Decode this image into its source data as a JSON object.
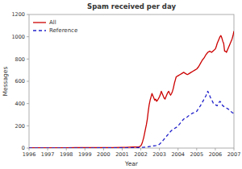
{
  "chart_data": {
    "type": "line",
    "title": "Spam received per day",
    "xlabel": "Year",
    "ylabel": "Messages",
    "xlim": [
      1996,
      2007
    ],
    "ylim": [
      0,
      1200
    ],
    "xticks": [
      1996,
      1997,
      1998,
      1999,
      2000,
      2001,
      2002,
      2003,
      2004,
      2005,
      2006,
      2007
    ],
    "yticks": [
      0,
      200,
      400,
      600,
      800,
      1000,
      1200
    ],
    "grid": false,
    "legend": "upper left",
    "series": [
      {
        "name": "All",
        "color": "#cc0000",
        "line_style": "solid",
        "x": [
          1996.0,
          1996.2,
          1996.5,
          1997.0,
          1997.5,
          1998.0,
          1998.5,
          1999.0,
          1999.5,
          2000.0,
          2000.5,
          2001.0,
          2001.2,
          2001.4,
          2001.6,
          2001.8,
          2001.9,
          2001.95,
          2002.0,
          2002.05,
          2002.1,
          2002.15,
          2002.2,
          2002.25,
          2002.3,
          2002.35,
          2002.4,
          2002.45,
          2002.5,
          2002.55,
          2002.6,
          2002.65,
          2002.7,
          2002.75,
          2002.8,
          2002.85,
          2002.9,
          2002.95,
          2003.0,
          2003.05,
          2003.1,
          2003.15,
          2003.2,
          2003.25,
          2003.3,
          2003.35,
          2003.4,
          2003.45,
          2003.5,
          2003.55,
          2003.6,
          2003.65,
          2003.7,
          2003.75,
          2003.8,
          2003.85,
          2003.9,
          2004.0,
          2004.1,
          2004.2,
          2004.3,
          2004.4,
          2004.5,
          2004.6,
          2004.7,
          2004.8,
          2004.9,
          2005.0,
          2005.1,
          2005.2,
          2005.3,
          2005.4,
          2005.5,
          2005.6,
          2005.7,
          2005.8,
          2005.9,
          2006.0,
          2006.05,
          2006.1,
          2006.15,
          2006.2,
          2006.25,
          2006.3,
          2006.35,
          2006.4,
          2006.45,
          2006.5,
          2006.55,
          2006.6,
          2006.65,
          2006.7,
          2006.75,
          2006.8,
          2006.85,
          2006.9,
          2006.95,
          2007.0
        ],
        "values": [
          2,
          2,
          2,
          3,
          3,
          3,
          4,
          4,
          5,
          5,
          5,
          6,
          7,
          8,
          9,
          10,
          12,
          15,
          20,
          35,
          60,
          90,
          130,
          170,
          210,
          260,
          330,
          390,
          430,
          460,
          490,
          470,
          450,
          430,
          440,
          420,
          430,
          445,
          460,
          480,
          510,
          490,
          470,
          450,
          440,
          460,
          480,
          500,
          510,
          490,
          475,
          490,
          510,
          540,
          580,
          610,
          640,
          650,
          660,
          670,
          680,
          670,
          660,
          670,
          680,
          690,
          700,
          710,
          730,
          760,
          790,
          810,
          840,
          860,
          870,
          860,
          875,
          890,
          910,
          940,
          960,
          980,
          1000,
          1010,
          990,
          960,
          940,
          870,
          870,
          860,
          880,
          900,
          920,
          940,
          960,
          980,
          1010,
          1050
        ]
      },
      {
        "name": "Reference",
        "color": "#2222cc",
        "line_style": "dashed",
        "x": [
          1996.0,
          1997.0,
          1998.0,
          1999.0,
          2000.0,
          2001.0,
          2001.5,
          2001.9,
          2002.0,
          2002.1,
          2002.2,
          2002.3,
          2002.4,
          2002.5,
          2002.6,
          2002.7,
          2002.8,
          2002.9,
          2002.95,
          2003.0,
          2003.1,
          2003.2,
          2003.3,
          2003.4,
          2003.5,
          2003.6,
          2003.7,
          2003.8,
          2003.9,
          2004.0,
          2004.1,
          2004.2,
          2004.3,
          2004.4,
          2004.5,
          2004.6,
          2004.7,
          2004.8,
          2004.9,
          2005.0,
          2005.1,
          2005.2,
          2005.3,
          2005.4,
          2005.5,
          2005.55,
          2005.6,
          2005.65,
          2005.7,
          2005.75,
          2005.8,
          2005.85,
          2005.9,
          2006.0,
          2006.1,
          2006.15,
          2006.2,
          2006.25,
          2006.3,
          2006.35,
          2006.4,
          2006.5,
          2006.6,
          2006.7,
          2006.8,
          2006.9,
          2006.95,
          2007.0
        ],
        "values": [
          1,
          1,
          1,
          1,
          2,
          2,
          3,
          4,
          5,
          6,
          8,
          10,
          12,
          15,
          18,
          20,
          22,
          25,
          28,
          35,
          50,
          70,
          90,
          110,
          130,
          150,
          165,
          175,
          185,
          200,
          220,
          240,
          260,
          270,
          280,
          295,
          305,
          315,
          320,
          330,
          355,
          380,
          410,
          440,
          470,
          500,
          510,
          490,
          470,
          450,
          430,
          420,
          400,
          390,
          380,
          400,
          410,
          420,
          410,
          395,
          380,
          370,
          360,
          350,
          335,
          320,
          315,
          310
        ]
      }
    ]
  }
}
